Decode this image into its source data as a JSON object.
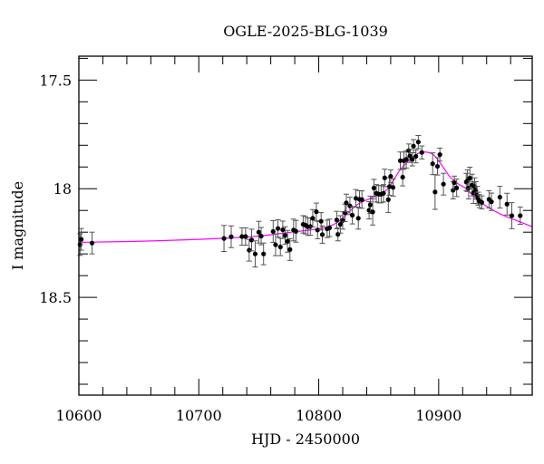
{
  "chart_data": {
    "type": "scatter",
    "title": "OGLE-2025-BLG-1039",
    "xlabel": "HJD - 2450000",
    "ylabel": "I magnitude",
    "xlim": [
      10600,
      10978
    ],
    "ylim": [
      18.95,
      17.39
    ],
    "y_inverted": true,
    "grid": false,
    "x_ticks": [
      10600,
      10700,
      10800,
      10900
    ],
    "x_tick_labels": [
      "10600",
      "10700",
      "10800",
      "10900"
    ],
    "x_minor_step": 20,
    "y_ticks": [
      17.5,
      18,
      18.5
    ],
    "y_tick_labels": [
      "17.5",
      "18",
      "18.5"
    ],
    "y_minor_step": 0.1,
    "colors": {
      "points": "#000000",
      "errorbars": "#555555",
      "model": "#ff00ff"
    },
    "series": [
      {
        "kind": "points-with-errorbars",
        "points": [
          [
            10601,
            18.257,
            0.05
          ],
          [
            10602,
            18.233,
            0.05
          ],
          [
            10611,
            18.25,
            0.05
          ],
          [
            10721,
            18.229,
            0.06
          ],
          [
            10727,
            18.221,
            0.05
          ],
          [
            10736,
            18.22,
            0.04
          ],
          [
            10739,
            18.22,
            0.04
          ],
          [
            10742,
            18.283,
            0.05
          ],
          [
            10744,
            18.236,
            0.05
          ],
          [
            10747,
            18.3,
            0.06
          ],
          [
            10750,
            18.2,
            0.05
          ],
          [
            10752,
            18.218,
            0.04
          ],
          [
            10754,
            18.3,
            0.05
          ],
          [
            10762,
            18.197,
            0.05
          ],
          [
            10764,
            18.258,
            0.05
          ],
          [
            10766,
            18.183,
            0.04
          ],
          [
            10768,
            18.268,
            0.04
          ],
          [
            10770,
            18.189,
            0.04
          ],
          [
            10772,
            18.215,
            0.04
          ],
          [
            10774,
            18.242,
            0.05
          ],
          [
            10776,
            18.28,
            0.05
          ],
          [
            10779,
            18.19,
            0.05
          ],
          [
            10781,
            18.196,
            0.05
          ],
          [
            10787,
            18.164,
            0.04
          ],
          [
            10789,
            18.168,
            0.04
          ],
          [
            10791,
            18.175,
            0.04
          ],
          [
            10793,
            18.174,
            0.04
          ],
          [
            10795,
            18.136,
            0.04
          ],
          [
            10798,
            18.106,
            0.04
          ],
          [
            10799,
            18.19,
            0.04
          ],
          [
            10802,
            18.15,
            0.04
          ],
          [
            10803,
            18.211,
            0.04
          ],
          [
            10807,
            18.185,
            0.04
          ],
          [
            10809,
            18.18,
            0.04
          ],
          [
            10815,
            18.144,
            0.04
          ],
          [
            10816,
            18.21,
            0.03
          ],
          [
            10818,
            18.164,
            0.04
          ],
          [
            10820,
            18.146,
            0.04
          ],
          [
            10822,
            18.111,
            0.04
          ],
          [
            10823,
            18.065,
            0.04
          ],
          [
            10826,
            18.079,
            0.04
          ],
          [
            10828,
            18.122,
            0.04
          ],
          [
            10831,
            18.044,
            0.04
          ],
          [
            10833,
            18.136,
            0.05
          ],
          [
            10834,
            18.049,
            0.04
          ],
          [
            10836,
            18.05,
            0.04
          ],
          [
            10842,
            18.099,
            0.04
          ],
          [
            10843,
            18.074,
            0.04
          ],
          [
            10845,
            18.107,
            0.06
          ],
          [
            10846,
            17.997,
            0.04
          ],
          [
            10848,
            18.021,
            0.04
          ],
          [
            10850,
            18.025,
            0.04
          ],
          [
            10852,
            18.025,
            0.04
          ],
          [
            10854,
            18.021,
            0.04
          ],
          [
            10855,
            17.95,
            0.04
          ],
          [
            10858,
            18.05,
            0.06
          ],
          [
            10859,
            17.99,
            0.04
          ],
          [
            10860,
            17.943,
            0.03
          ],
          [
            10862,
            17.994,
            0.04
          ],
          [
            10868,
            17.871,
            0.04
          ],
          [
            10870,
            17.947,
            0.04
          ],
          [
            10871,
            17.871,
            0.04
          ],
          [
            10873,
            17.865,
            0.04
          ],
          [
            10875,
            17.824,
            0.03
          ],
          [
            10876,
            17.849,
            0.03
          ],
          [
            10878,
            17.865,
            0.03
          ],
          [
            10879,
            17.804,
            0.03
          ],
          [
            10881,
            17.851,
            0.03
          ],
          [
            10883,
            17.785,
            0.03
          ],
          [
            10886,
            17.833,
            0.03
          ],
          [
            10895,
            17.885,
            0.05
          ],
          [
            10897,
            18.015,
            0.08
          ],
          [
            10899,
            17.897,
            0.04
          ],
          [
            10901,
            17.843,
            0.03
          ],
          [
            10904,
            17.979,
            0.05
          ],
          [
            10912,
            18.007,
            0.04
          ],
          [
            10913,
            17.972,
            0.03
          ],
          [
            10915,
            17.996,
            0.04
          ],
          [
            10923,
            17.969,
            0.04
          ],
          [
            10924,
            17.963,
            0.05
          ],
          [
            10925,
            17.997,
            0.05
          ],
          [
            10926,
            17.951,
            0.05
          ],
          [
            10928,
            17.983,
            0.05
          ],
          [
            10929,
            18.018,
            0.05
          ],
          [
            10930,
            17.99,
            0.04
          ],
          [
            10931,
            18.008,
            0.04
          ],
          [
            10932,
            18.029,
            0.04
          ],
          [
            10933,
            18.046,
            0.03
          ],
          [
            10934,
            18.057,
            0.03
          ],
          [
            10936,
            18.063,
            0.03
          ],
          [
            10942,
            18.049,
            0.04
          ],
          [
            10944,
            18.06,
            0.04
          ],
          [
            10951,
            18.039,
            0.05
          ],
          [
            10957,
            18.071,
            0.05
          ],
          [
            10961,
            18.124,
            0.06
          ],
          [
            10968,
            18.124,
            0.04
          ]
        ]
      },
      {
        "kind": "model-curve",
        "x": [
          10600,
          10650,
          10700,
          10746,
          10780,
          10799,
          10815,
          10832,
          10845,
          10857,
          10867,
          10875,
          10882,
          10889,
          10896,
          10903,
          10910,
          10917,
          10923,
          10932,
          10942,
          10951,
          10960,
          10970,
          10978
        ],
        "y": [
          18.247,
          18.242,
          18.233,
          18.22,
          18.198,
          18.185,
          18.157,
          18.074,
          18.04,
          18.004,
          17.92,
          17.87,
          17.84,
          17.831,
          17.845,
          17.895,
          17.949,
          17.98,
          18.0,
          18.05,
          18.088,
          18.115,
          18.136,
          18.157,
          18.175
        ]
      }
    ]
  }
}
